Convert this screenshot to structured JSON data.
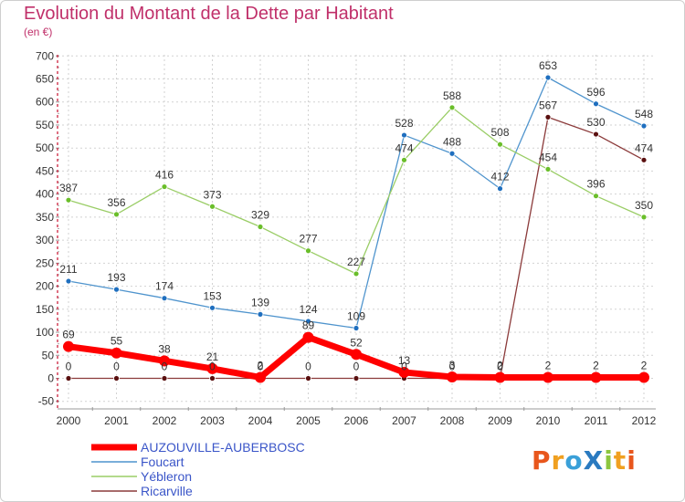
{
  "chart_data": {
    "type": "line",
    "title": "Evolution du Montant de la Dette par Habitant",
    "subtitle": "(en €)",
    "x": [
      "2000",
      "2001",
      "2002",
      "2003",
      "2004",
      "2005",
      "2006",
      "2007",
      "2008",
      "2009",
      "2010",
      "2011",
      "2012"
    ],
    "yticks": [
      "700",
      "650",
      "600",
      "550",
      "500",
      "450",
      "400",
      "350",
      "300",
      "250",
      "200",
      "150",
      "100",
      "50",
      "0",
      "-50"
    ],
    "ylim": [
      -50,
      700
    ],
    "legend_position": "bottom-left",
    "series": [
      {
        "name": "AUZOUVILLE-AUBERBOSC",
        "color": "#ff0000",
        "width": 7,
        "marker_r": 6,
        "values": [
          69,
          55,
          38,
          21,
          2,
          89,
          52,
          13,
          3,
          2,
          2,
          2,
          2
        ],
        "labels": [
          "69",
          "55",
          "38",
          "21",
          "2",
          "89",
          "52",
          "13",
          "3",
          "2",
          "2",
          "2",
          "2"
        ]
      },
      {
        "name": "Foucart",
        "color": "#4f94cd",
        "marker": "#1f6fbf",
        "width": 1.3,
        "marker_r": 3,
        "values": [
          211,
          193,
          174,
          153,
          139,
          124,
          109,
          528,
          488,
          412,
          653,
          596,
          548
        ],
        "labels": [
          "211",
          "193",
          "174",
          "153",
          "139",
          "124",
          "109",
          "528",
          "488",
          "412",
          "653",
          "596",
          "548"
        ]
      },
      {
        "name": "Yébleron",
        "color": "#9acd66",
        "marker": "#6abe2a",
        "width": 1.3,
        "marker_r": 3,
        "values": [
          387,
          356,
          416,
          373,
          329,
          277,
          227,
          474,
          588,
          508,
          454,
          396,
          350
        ],
        "labels": [
          "387",
          "356",
          "416",
          "373",
          "329",
          "277",
          "227",
          "474",
          "588",
          "508",
          "454",
          "396",
          "350"
        ]
      },
      {
        "name": "Ricarville",
        "color": "#8b3a3a",
        "marker": "#5a1010",
        "width": 1.3,
        "marker_r": 3,
        "values": [
          0,
          0,
          0,
          0,
          0,
          0,
          0,
          0,
          0,
          0,
          567,
          530,
          474
        ],
        "labels": [
          "0",
          "0",
          "0",
          "0",
          "0",
          "0",
          "0",
          "0",
          "0",
          "0",
          "567",
          "530",
          "474"
        ]
      }
    ]
  },
  "logo": {
    "text": "ProXiti",
    "letters": [
      {
        "ch": "P",
        "color": "#e8561c"
      },
      {
        "ch": "r",
        "color": "#f0a020"
      },
      {
        "ch": "o",
        "color": "#3aa0d8"
      },
      {
        "ch": "X",
        "color": "#2a7ac0"
      },
      {
        "ch": "i",
        "color": "#8cc63f"
      },
      {
        "ch": "t",
        "color": "#f0a020"
      },
      {
        "ch": "i",
        "color": "#e8561c"
      }
    ]
  }
}
